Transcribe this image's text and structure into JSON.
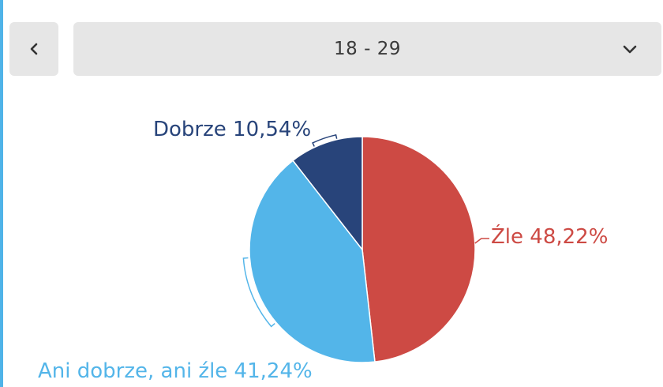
{
  "selector": {
    "prev_icon": "chevron-left-icon",
    "value": "18 - 29",
    "dropdown_icon": "chevron-down-icon"
  },
  "colors": {
    "accent": "#4fb3e8",
    "button_bg": "#e6e6e6",
    "dobrze": "#28447a",
    "zle": "#cd4a44",
    "ani": "#53b5e9"
  },
  "chart_data": {
    "type": "pie",
    "slices": [
      {
        "label": "Źle",
        "value": 48.22,
        "display": "Źle 48,22%",
        "color": "#cd4a44"
      },
      {
        "label": "Ani dobrze, ani źle",
        "value": 41.24,
        "display": "Ani dobrze, ani źle 41,24%",
        "color": "#53b5e9"
      },
      {
        "label": "Dobrze",
        "value": 10.54,
        "display": "Dobrze 10,54%",
        "color": "#28447a"
      }
    ]
  }
}
